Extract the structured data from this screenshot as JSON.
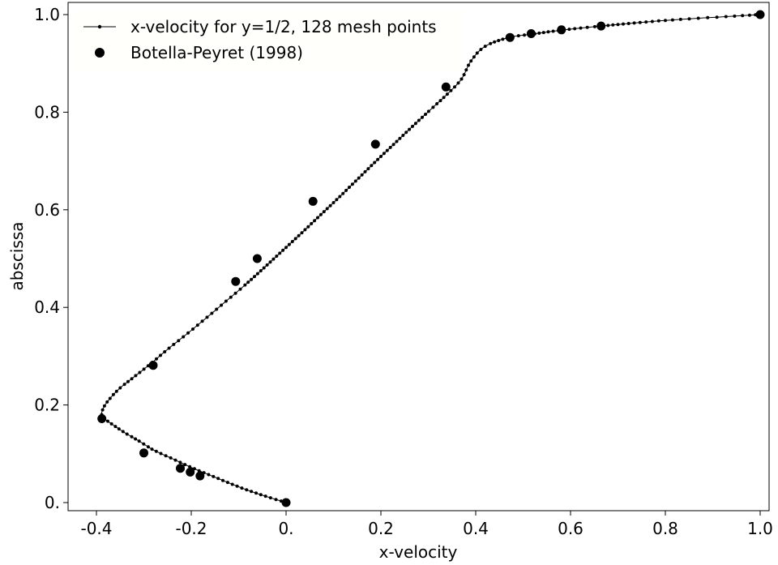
{
  "chart_data": {
    "type": "line",
    "title": "",
    "xlabel": "x-velocity",
    "ylabel": "abscissa",
    "xlim": [
      -0.45,
      1.02
    ],
    "ylim": [
      -0.015,
      1.0
    ],
    "grid": false,
    "legend_position": "top-left",
    "x_ticks": [
      {
        "value": -0.4,
        "label": "-0.4"
      },
      {
        "value": -0.2,
        "label": "-0.2"
      },
      {
        "value": 0.0,
        "label": "0."
      },
      {
        "value": 0.2,
        "label": "0.2"
      },
      {
        "value": 0.4,
        "label": "0.4"
      },
      {
        "value": 0.6,
        "label": "0.6"
      },
      {
        "value": 0.8,
        "label": "0.8"
      },
      {
        "value": 1.0,
        "label": "1.0"
      }
    ],
    "y_ticks": [
      {
        "value": 0.0,
        "label": "0."
      },
      {
        "value": 0.2,
        "label": "0.2"
      },
      {
        "value": 0.4,
        "label": "0.4"
      },
      {
        "value": 0.6,
        "label": "0.6"
      },
      {
        "value": 0.8,
        "label": "0.8"
      },
      {
        "value": 1.0,
        "label": "1.0"
      }
    ],
    "series": [
      {
        "name": "x-velocity for y=1/2, 128 mesh points",
        "style": "line-with-small-markers",
        "color": "#000000",
        "x": [
          0.0,
          -0.04,
          -0.08,
          -0.12,
          -0.16,
          -0.2,
          -0.24,
          -0.28,
          -0.31,
          -0.34,
          -0.36,
          -0.375,
          -0.385,
          -0.389,
          -0.383,
          -0.37,
          -0.35,
          -0.32,
          -0.285,
          -0.25,
          -0.21,
          -0.17,
          -0.13,
          -0.09,
          -0.05,
          -0.01,
          0.03,
          0.07,
          0.11,
          0.15,
          0.19,
          0.23,
          0.27,
          0.31,
          0.34,
          0.37,
          0.39,
          0.42,
          0.47,
          0.52,
          0.58,
          0.66,
          0.8,
          1.0
        ],
        "y": [
          0.0,
          0.012,
          0.025,
          0.04,
          0.056,
          0.072,
          0.09,
          0.108,
          0.126,
          0.143,
          0.156,
          0.166,
          0.174,
          0.183,
          0.198,
          0.215,
          0.235,
          0.258,
          0.285,
          0.314,
          0.345,
          0.377,
          0.41,
          0.443,
          0.478,
          0.514,
          0.55,
          0.587,
          0.624,
          0.662,
          0.7,
          0.737,
          0.774,
          0.81,
          0.837,
          0.868,
          0.905,
          0.935,
          0.953,
          0.96,
          0.968,
          0.976,
          0.988,
          1.0
        ]
      },
      {
        "name": "Botella-Peyret (1998)",
        "style": "markers-only",
        "color": "#000000",
        "x": [
          0.0,
          -0.1816,
          -0.2023,
          -0.2231,
          -0.3,
          -0.3885,
          -0.2803,
          -0.1064,
          -0.0608,
          0.0567,
          0.1886,
          0.3372,
          0.4723,
          0.5169,
          0.5808,
          0.6644,
          1.0
        ],
        "y": [
          0.0,
          0.0547,
          0.0625,
          0.0703,
          0.1016,
          0.1719,
          0.2813,
          0.4531,
          0.5,
          0.6172,
          0.7344,
          0.8516,
          0.9531,
          0.9609,
          0.9688,
          0.9766,
          1.0
        ]
      }
    ]
  }
}
